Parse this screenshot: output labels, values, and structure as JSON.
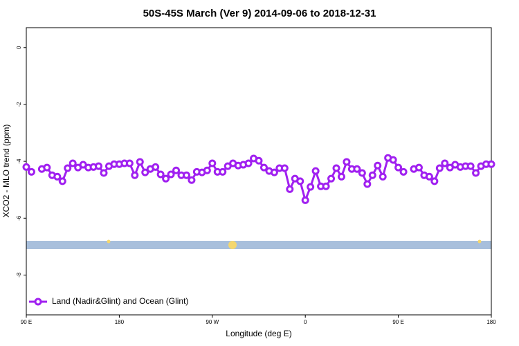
{
  "chart_data": {
    "type": "line",
    "title": "50S-45S March (Ver 9)   2014-09-06 to 2018-12-31",
    "xlabel": "Longitude (deg E)",
    "ylabel": "XCO2 - MLO trend (ppm)",
    "xlim": [
      90,
      540
    ],
    "xticks": [
      {
        "value": 90,
        "label": "90 E"
      },
      180,
      {
        "value": 270,
        "label": "90 W"
      },
      {
        "value": 360,
        "label": "0"
      },
      {
        "value": 450,
        "label": "90 E"
      },
      {
        "value": 540,
        "label": "180"
      }
    ],
    "ylim": [
      -9.4,
      0.7
    ],
    "yticks": [
      0,
      -2,
      -4,
      -6,
      -8
    ],
    "grid": false,
    "legend": "bottom-left",
    "x": [
      90,
      95,
      100,
      105,
      110,
      115,
      120,
      125,
      130,
      135,
      140,
      145,
      150,
      155,
      160,
      165,
      170,
      175,
      180,
      185,
      190,
      195,
      200,
      205,
      210,
      215,
      220,
      225,
      230,
      235,
      240,
      245,
      250,
      255,
      260,
      265,
      270,
      275,
      280,
      285,
      290,
      295,
      300,
      305,
      310,
      315,
      320,
      325,
      330,
      335,
      340,
      345,
      350,
      355,
      360,
      365,
      370,
      375,
      380,
      385,
      390,
      395,
      400,
      405,
      410,
      415,
      420,
      425,
      430,
      435,
      440,
      445,
      450,
      455,
      460,
      465,
      470,
      475,
      480,
      485,
      490,
      495,
      500,
      505,
      510,
      515,
      520,
      525,
      530,
      535,
      540
    ],
    "series": [
      {
        "name": "Land (Nadir&Glint) and Ocean (Glint)",
        "color": "#a020f0",
        "values": [
          -4.2,
          -4.37,
          null,
          -4.27,
          -4.22,
          -4.49,
          -4.54,
          -4.7,
          -4.24,
          -4.07,
          -4.22,
          -4.12,
          -4.22,
          -4.2,
          -4.17,
          -4.41,
          -4.17,
          -4.1,
          -4.1,
          -4.07,
          -4.07,
          -4.49,
          -4.02,
          -4.39,
          -4.27,
          -4.2,
          -4.46,
          -4.61,
          -4.46,
          -4.32,
          -4.49,
          -4.49,
          -4.66,
          -4.37,
          -4.39,
          -4.32,
          -4.07,
          -4.37,
          -4.37,
          -4.17,
          -4.07,
          -4.15,
          -4.12,
          -4.07,
          -3.9,
          -3.98,
          -4.22,
          -4.34,
          -4.39,
          -4.24,
          -4.24,
          -4.98,
          -4.61,
          -4.7,
          -5.37,
          -4.9,
          -4.34,
          -4.88,
          -4.88,
          -4.61,
          -4.24,
          -4.54,
          -4.02,
          -4.27,
          -4.27,
          -4.41,
          -4.8,
          -4.49,
          -4.15,
          -4.54,
          -3.88,
          -3.95,
          -4.22,
          -4.37,
          null,
          -4.27,
          -4.22,
          -4.49,
          -4.54,
          -4.7,
          -4.24,
          -4.07,
          -4.22,
          -4.12,
          -4.2,
          -4.17,
          -4.17,
          -4.41,
          -4.17,
          -4.1,
          -4.1
        ]
      }
    ]
  }
}
